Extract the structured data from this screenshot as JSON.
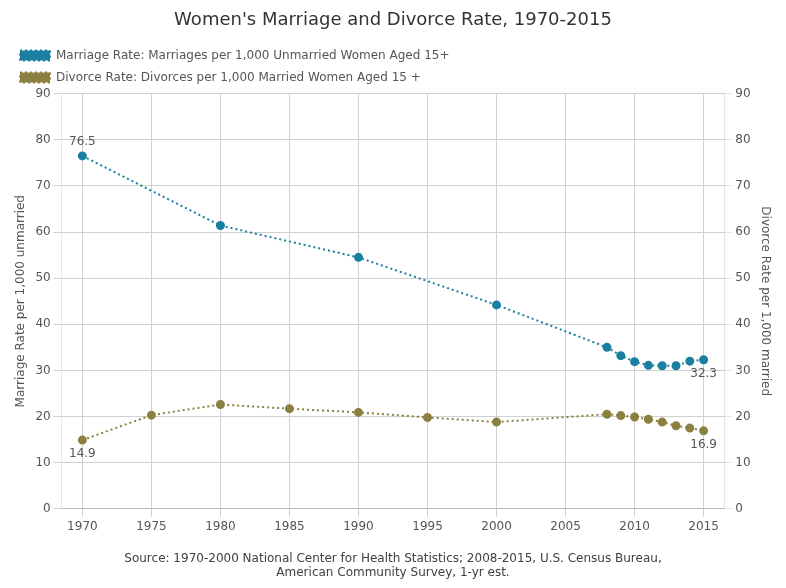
{
  "chart_data": {
    "type": "line",
    "title": "Women's Marriage and Divorce Rate, 1970-2015",
    "source": "Source: 1970-2000 National Center for Health Statistics; 2008-2015, U.S. Census Bureau,\nAmerican Community Survey, 1-yr est.",
    "xlim": [
      1968.5,
      2016.5
    ],
    "xticks": [
      1970,
      1975,
      1980,
      1985,
      1990,
      1995,
      2000,
      2005,
      2010,
      2015
    ],
    "ylabel": "Marriage Rate per 1,000 unmarried",
    "ylim": [
      0,
      90
    ],
    "yticks": [
      0,
      10,
      20,
      30,
      40,
      50,
      60,
      70,
      80,
      90
    ],
    "y2label": "Divorce Rate per 1,000 married",
    "y2lim": [
      0,
      90
    ],
    "y2ticks": [
      0,
      10,
      20,
      30,
      40,
      50,
      60,
      70,
      80,
      90
    ],
    "grid": true,
    "legend": "upper left",
    "series": [
      {
        "name": "Marriage Rate: Marriages per 1,000 Unmarried Women Aged 15+",
        "color": "#1a7fa0",
        "marker": "circle",
        "line_style": "dotted",
        "axis": "y",
        "x": [
          1970,
          1980,
          1990,
          2000,
          2008,
          2009,
          2010,
          2011,
          2012,
          2013,
          2014,
          2015
        ],
        "values": [
          76.5,
          61.4,
          54.5,
          44.2,
          35.0,
          33.2,
          31.9,
          31.1,
          31.0,
          31.0,
          32.0,
          32.3
        ]
      },
      {
        "name": "Divorce Rate: Divorces per 1,000 Married Women Aged 15 +",
        "color": "#8c8040",
        "marker": "circle",
        "line_style": "dotted",
        "axis": "y2",
        "x": [
          1970,
          1975,
          1980,
          1985,
          1990,
          1995,
          2000,
          2008,
          2009,
          2010,
          2011,
          2012,
          2013,
          2014,
          2015
        ],
        "values": [
          14.9,
          20.3,
          22.6,
          21.7,
          20.9,
          19.8,
          18.8,
          20.5,
          20.2,
          19.9,
          19.4,
          18.8,
          18.0,
          17.5,
          16.9
        ]
      }
    ],
    "annotations": [
      {
        "text": "76.5",
        "x": 1970,
        "y": 76.5
      },
      {
        "text": "32.3",
        "x": 2015,
        "y": 32.3
      },
      {
        "text": "14.9",
        "x": 1970,
        "y": 14.9
      },
      {
        "text": "16.9",
        "x": 2015,
        "y": 16.9
      }
    ]
  }
}
